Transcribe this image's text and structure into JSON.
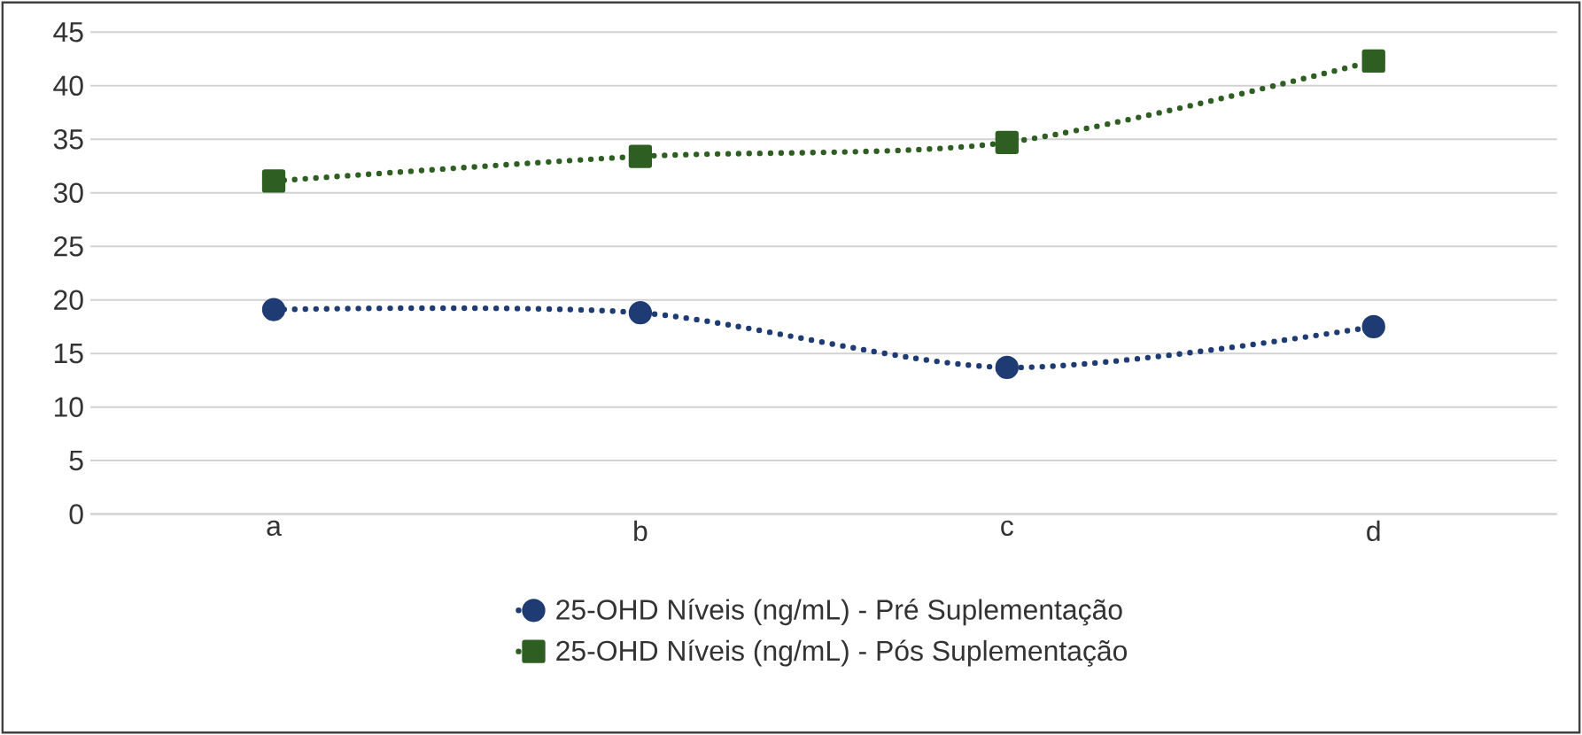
{
  "chart_data": {
    "type": "line",
    "categories": [
      "a",
      "b",
      "c",
      "d"
    ],
    "series": [
      {
        "name": "25-OHD Níveis (ng/mL) - Pré Suplementação",
        "color": "#1f3b73",
        "marker": "circle",
        "values": [
          19.1,
          18.8,
          13.7,
          17.5
        ]
      },
      {
        "name": "25-OHD Níveis (ng/mL) - Pós Suplementação",
        "color": "#2e5e22",
        "marker": "square",
        "values": [
          31.1,
          33.4,
          34.7,
          42.3
        ]
      }
    ],
    "ylim": [
      0,
      45
    ],
    "yticks": [
      0,
      5,
      10,
      15,
      20,
      25,
      30,
      35,
      40,
      45
    ],
    "grid": "y",
    "legend": "bottom",
    "line_style": "dotted"
  }
}
